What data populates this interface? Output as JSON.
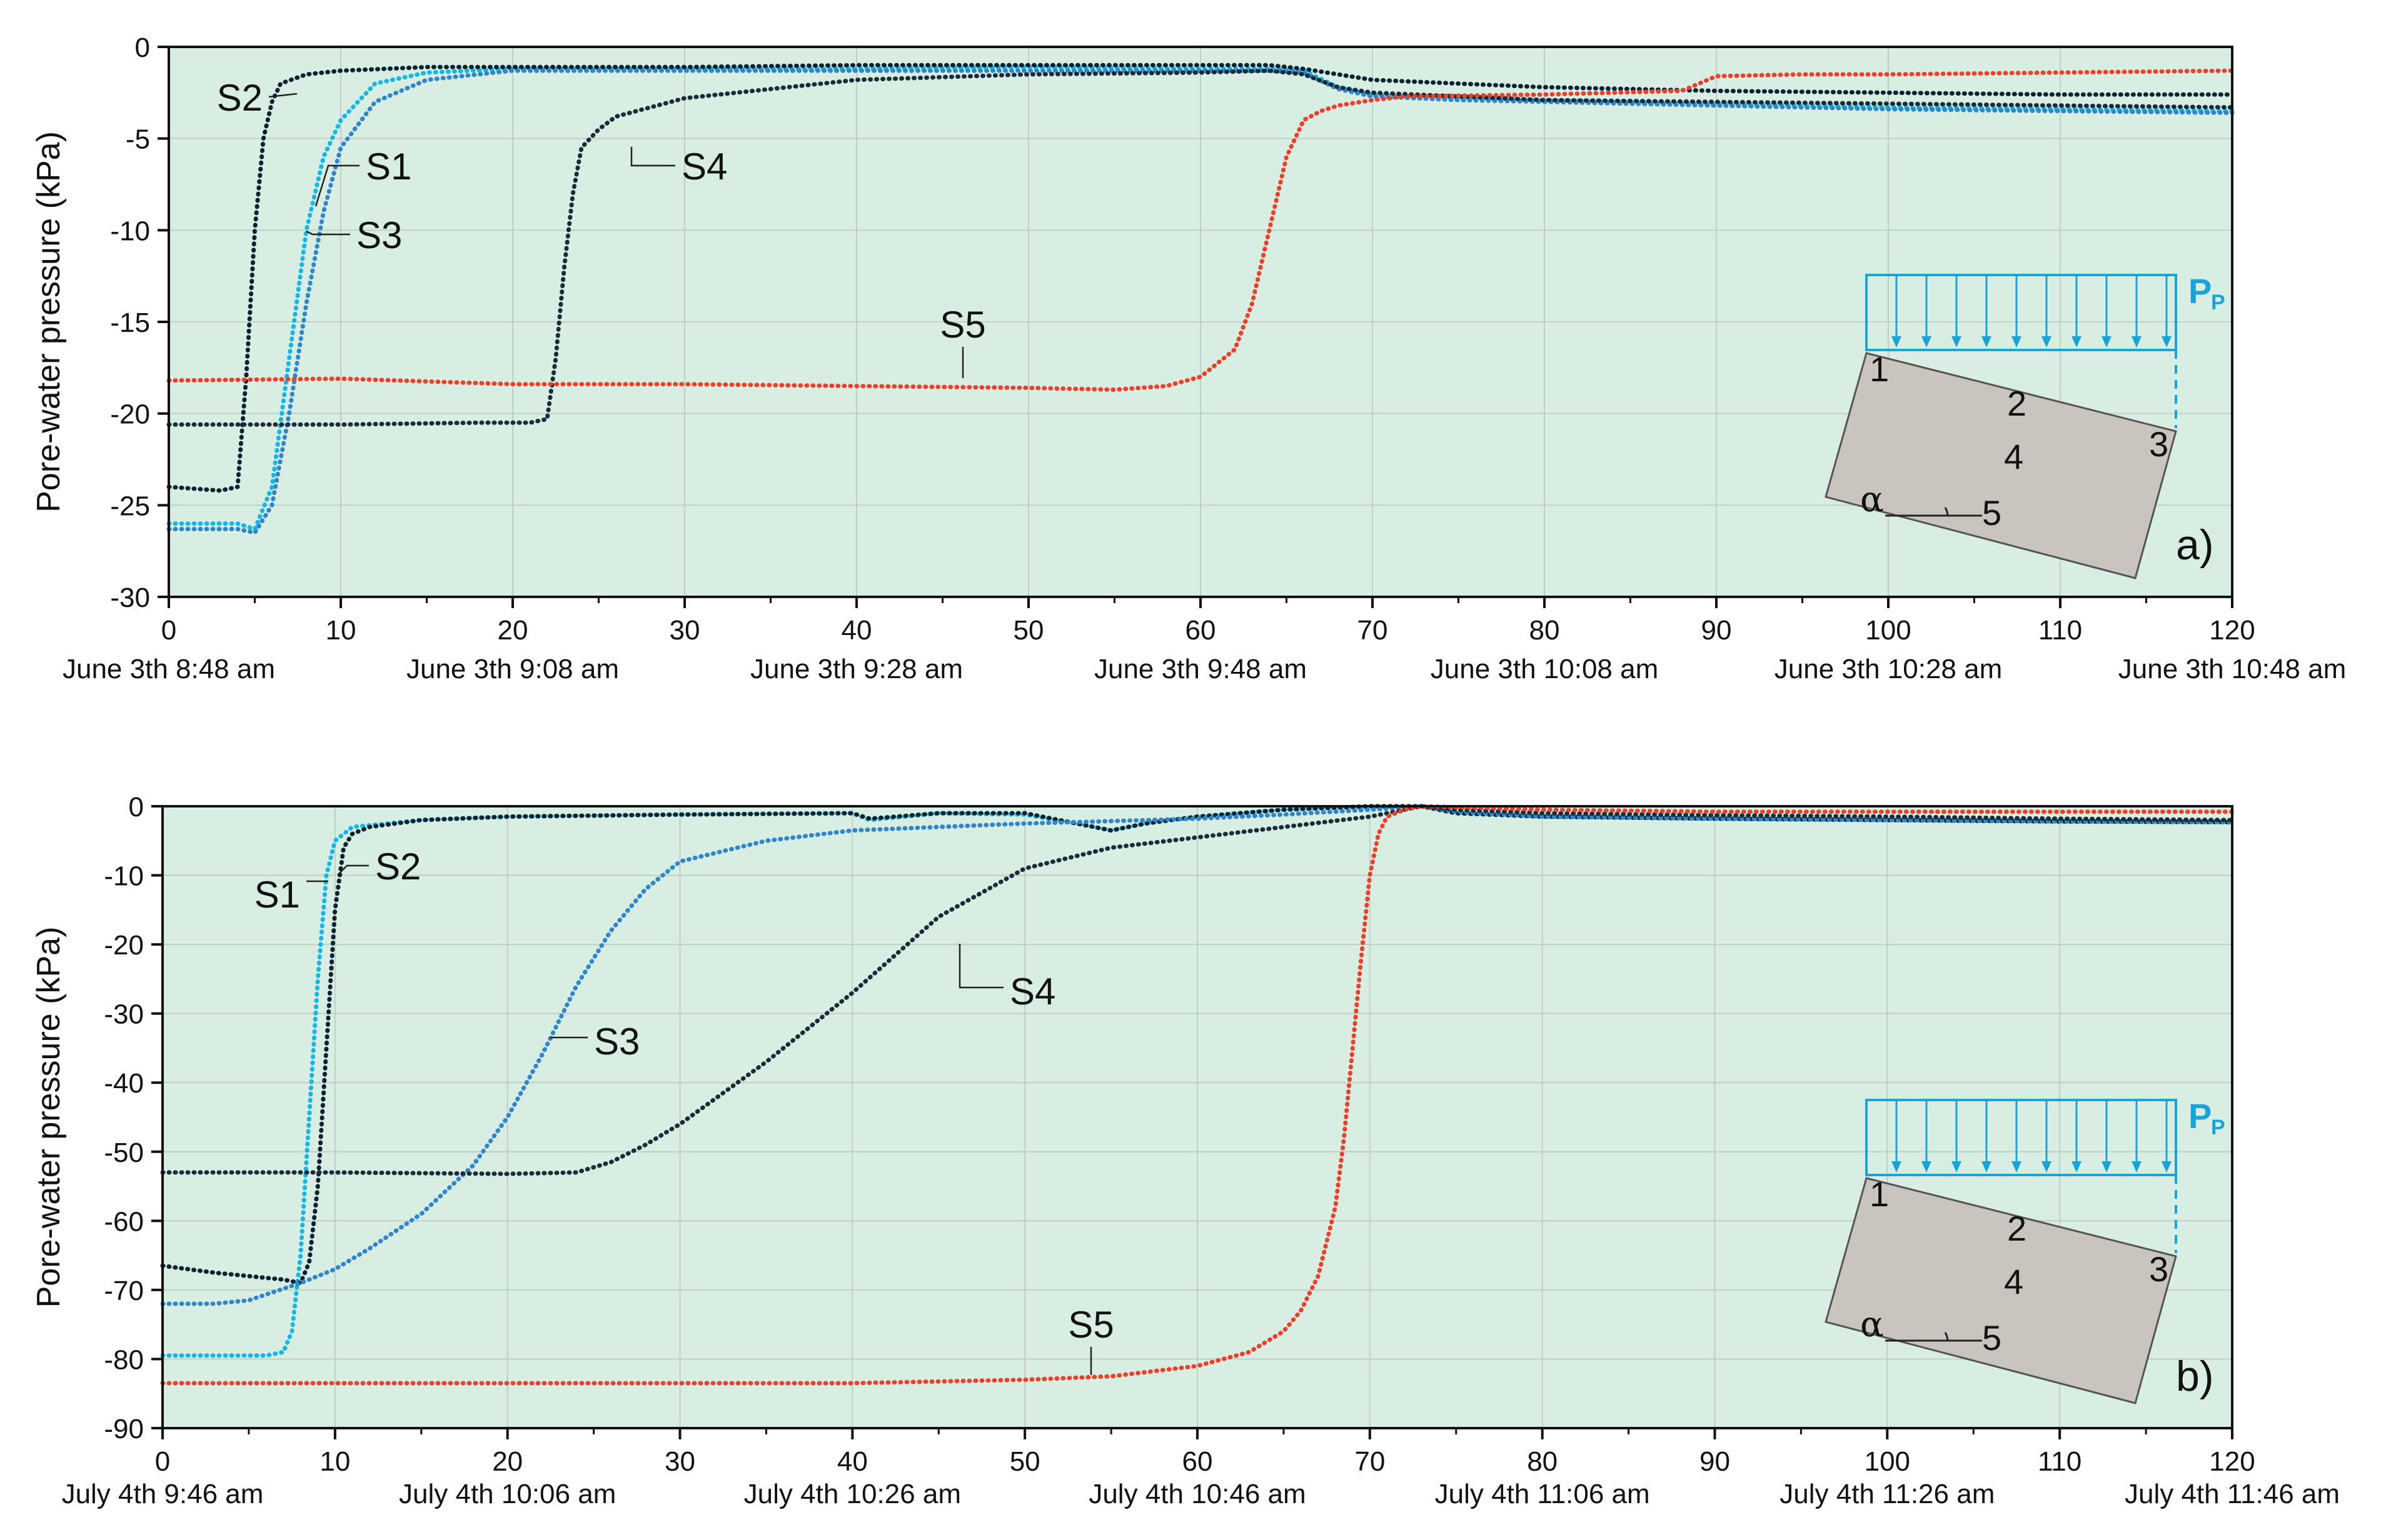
{
  "colors": {
    "plot_background": "#d9eee3",
    "grid": "#c2cfc6",
    "axis": "#111111",
    "S1": "#15b7e3",
    "S2": "#0b2233",
    "S3": "#2f86c8",
    "S4": "#1b2b3a",
    "S5": "#e8412c",
    "inset_load": "#1aa3d9",
    "inset_block": "#c9c4bd"
  },
  "chart_data": [
    {
      "panel": "a)",
      "type": "line",
      "ylabel": "Pore-water pressure (kPa)",
      "xlim": [
        0,
        120
      ],
      "ylim": [
        -30,
        0
      ],
      "xticks": [
        "0",
        "10",
        "20",
        "30",
        "40",
        "50",
        "60",
        "70",
        "80",
        "90",
        "100",
        "110",
        "120"
      ],
      "yticks": [
        "0",
        "-5",
        "-10",
        "-15",
        "-20",
        "-25",
        "-30"
      ],
      "date_labels": [
        "June 3th 8:48 am",
        "June 3th 9:08 am",
        "June 3th 9:28 am",
        "June 3th 9:48 am",
        "June 3th 10:08 am",
        "June 3th 10:28 am",
        "June 3th 10:48 am"
      ],
      "grid": true,
      "series": [
        {
          "name": "S1",
          "x": [
            0,
            4,
            5,
            6,
            7,
            8,
            9,
            10,
            12,
            15,
            20,
            30,
            40,
            50,
            60,
            64,
            66,
            68,
            70,
            75,
            80,
            90,
            100,
            110,
            120
          ],
          "y": [
            -26,
            -26,
            -26.3,
            -24,
            -17,
            -10,
            -6,
            -4,
            -2,
            -1.4,
            -1.2,
            -1.2,
            -1.2,
            -1.1,
            -1.2,
            -1.2,
            -1.3,
            -2.2,
            -2.6,
            -2.8,
            -2.9,
            -3.1,
            -3.3,
            -3.4,
            -3.5
          ]
        },
        {
          "name": "S2",
          "x": [
            0,
            3,
            4,
            4.5,
            5,
            5.5,
            6,
            6.5,
            8,
            10,
            15,
            20,
            30,
            40,
            50,
            60,
            64,
            66,
            68,
            70,
            75,
            80,
            90,
            100,
            110,
            120
          ],
          "y": [
            -24,
            -24.2,
            -24,
            -18,
            -10,
            -5,
            -3,
            -2,
            -1.5,
            -1.3,
            -1.1,
            -1.1,
            -1.1,
            -1,
            -1,
            -1,
            -1,
            -1.2,
            -1.5,
            -1.8,
            -2,
            -2.2,
            -2.4,
            -2.5,
            -2.6,
            -2.6
          ]
        },
        {
          "name": "S3",
          "x": [
            0,
            4,
            5,
            6,
            7,
            8,
            9,
            10,
            12,
            15,
            20,
            30,
            40,
            50,
            60,
            64,
            66,
            68,
            70,
            75,
            80,
            90,
            100,
            110,
            120
          ],
          "y": [
            -26.3,
            -26.3,
            -26.5,
            -25,
            -20,
            -14,
            -9,
            -5.5,
            -3,
            -1.8,
            -1.3,
            -1.3,
            -1.3,
            -1.3,
            -1.3,
            -1.3,
            -1.4,
            -2.3,
            -2.7,
            -2.9,
            -3,
            -3.2,
            -3.4,
            -3.5,
            -3.6
          ]
        },
        {
          "name": "S4",
          "x": [
            0,
            10,
            18,
            20,
            21,
            22,
            22.5,
            23,
            23.5,
            24,
            25,
            26,
            28,
            30,
            40,
            50,
            60,
            64,
            66,
            68,
            70,
            75,
            80,
            90,
            100,
            110,
            120
          ],
          "y": [
            -20.6,
            -20.6,
            -20.5,
            -20.5,
            -20.5,
            -20.3,
            -17,
            -12,
            -8,
            -5.5,
            -4.5,
            -3.8,
            -3.3,
            -2.8,
            -1.8,
            -1.5,
            -1.4,
            -1.3,
            -1.5,
            -2.2,
            -2.5,
            -2.7,
            -2.9,
            -3,
            -3.1,
            -3.2,
            -3.3
          ]
        },
        {
          "name": "S5",
          "x": [
            0,
            10,
            20,
            30,
            40,
            50,
            55,
            58,
            60,
            62,
            63,
            64,
            65,
            66,
            67,
            68,
            70,
            72,
            80,
            88,
            89,
            90,
            95,
            100,
            110,
            120
          ],
          "y": [
            -18.2,
            -18.1,
            -18.4,
            -18.4,
            -18.5,
            -18.6,
            -18.7,
            -18.5,
            -18,
            -16.5,
            -14,
            -10,
            -6,
            -4,
            -3.5,
            -3.2,
            -2.9,
            -2.7,
            -2.6,
            -2.4,
            -2,
            -1.6,
            -1.5,
            -1.5,
            -1.4,
            -1.3
          ]
        }
      ],
      "labels": [
        "S1",
        "S2",
        "S3",
        "S4",
        "S5"
      ]
    },
    {
      "panel": "b)",
      "type": "line",
      "ylabel": "Pore-water pressure (kPa)",
      "xlim": [
        0,
        120
      ],
      "ylim": [
        -90,
        0
      ],
      "xticks": [
        "0",
        "10",
        "20",
        "30",
        "40",
        "50",
        "60",
        "70",
        "80",
        "90",
        "100",
        "110",
        "120"
      ],
      "yticks": [
        "0",
        "-10",
        "-20",
        "-30",
        "-40",
        "-50",
        "-60",
        "-70",
        "-80",
        "-90"
      ],
      "date_labels": [
        "July 4th 9:46 am",
        "July 4th 10:06 am",
        "July 4th 10:26 am",
        "July 4th 10:46 am",
        "July 4th 11:06 am",
        "July 4th 11:26 am",
        "July 4th 11:46 am"
      ],
      "grid": true,
      "series": [
        {
          "name": "S1",
          "x": [
            0,
            6,
            7,
            7.5,
            8,
            8.5,
            9,
            9.5,
            10,
            11,
            15,
            20,
            30,
            40,
            41,
            45,
            50,
            53,
            55,
            57,
            60,
            65,
            70,
            73,
            75,
            80,
            90,
            100,
            110,
            120
          ],
          "y": [
            -79.5,
            -79.5,
            -79,
            -76,
            -65,
            -45,
            -25,
            -10,
            -5,
            -3,
            -2,
            -1.5,
            -1.2,
            -1,
            -2,
            -1,
            -1.2,
            -2.5,
            -3.5,
            -2.5,
            -1.5,
            -0.5,
            0,
            0,
            -1,
            -1.5,
            -1.8,
            -2,
            -2.2,
            -2.3
          ]
        },
        {
          "name": "S2",
          "x": [
            0,
            3,
            5,
            7,
            8,
            8.5,
            9,
            9.5,
            10,
            10.5,
            11,
            12,
            15,
            20,
            30,
            40,
            41,
            45,
            50,
            53,
            55,
            57,
            60,
            65,
            70,
            73,
            75,
            80,
            90,
            100,
            110,
            120
          ],
          "y": [
            -66.5,
            -67.5,
            -68,
            -68.5,
            -69,
            -66,
            -55,
            -35,
            -15,
            -6,
            -4,
            -3,
            -2,
            -1.5,
            -1.2,
            -1,
            -1.8,
            -1,
            -1,
            -2.5,
            -3.5,
            -2.5,
            -1.5,
            -0.5,
            0,
            0,
            -1,
            -1.5,
            -1.8,
            -2,
            -2.2,
            -2.3
          ]
        },
        {
          "name": "S3",
          "x": [
            0,
            3,
            5,
            8,
            10,
            12,
            15,
            18,
            20,
            22,
            24,
            26,
            28,
            30,
            35,
            40,
            50,
            60,
            65,
            70,
            73,
            75,
            80,
            90,
            100,
            110,
            120
          ],
          "y": [
            -72,
            -72,
            -71.5,
            -69,
            -67,
            -64,
            -59,
            -52,
            -45,
            -36,
            -26,
            -18,
            -12,
            -8,
            -5,
            -3.5,
            -2.5,
            -1.8,
            -1.2,
            -0.5,
            0,
            -0.8,
            -1.5,
            -1.8,
            -2,
            -2.2,
            -2.3
          ]
        },
        {
          "name": "S4",
          "x": [
            0,
            10,
            20,
            24,
            26,
            28,
            30,
            35,
            40,
            45,
            50,
            55,
            60,
            65,
            70,
            73,
            75,
            80,
            90,
            100,
            110,
            120
          ],
          "y": [
            -53,
            -53,
            -53.2,
            -53,
            -51.5,
            -49,
            -46,
            -37,
            -27,
            -16,
            -9,
            -6,
            -4.5,
            -3,
            -1.5,
            0,
            -0.5,
            -1,
            -1.3,
            -1.5,
            -1.8,
            -2
          ]
        },
        {
          "name": "S5",
          "x": [
            0,
            20,
            40,
            50,
            55,
            60,
            63,
            65,
            66,
            67,
            68,
            68.5,
            69,
            69.5,
            70,
            70.5,
            71,
            72,
            73,
            80,
            90,
            100,
            110,
            120
          ],
          "y": [
            -83.5,
            -83.5,
            -83.5,
            -83,
            -82.5,
            -81,
            -79,
            -76,
            -73,
            -68,
            -58,
            -48,
            -35,
            -22,
            -10,
            -4,
            -1.5,
            -0.5,
            0,
            -0.5,
            -0.8,
            -0.8,
            -0.8,
            -0.8
          ]
        }
      ],
      "labels": [
        "S1",
        "S2",
        "S3",
        "S4",
        "S5"
      ]
    }
  ],
  "inset": {
    "load_label": "P",
    "load_sub": "P",
    "points": [
      "1",
      "2",
      "3",
      "4",
      "5"
    ],
    "angle_symbol": "α"
  }
}
